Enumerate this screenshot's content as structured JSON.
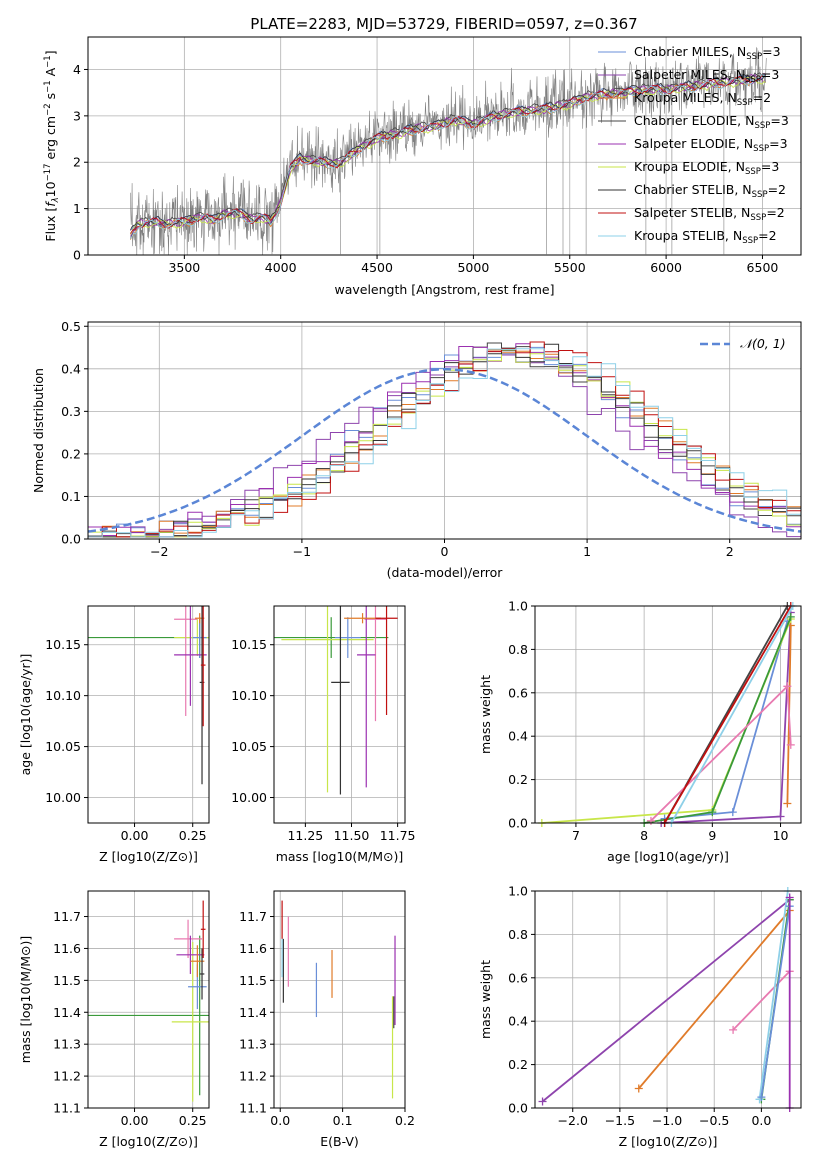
{
  "figure_title": "PLATE=2283, MJD=53729, FIBERID=0597, z=0.367",
  "colors": {
    "chabrier_miles": "#6a8fd8",
    "salpeter_miles": "#8e44ad",
    "kroupa_miles": "#e07b2a",
    "chabrier_elodie": "#444444",
    "salpeter_elodie": "#9b30b0",
    "kroupa_elodie": "#c8e64a",
    "chabrier_stelib": "#333333",
    "salpeter_stelib": "#c01010",
    "kroupa_stelib": "#8ed0e8",
    "pink": "#e87ab0",
    "green": "#3a9a3a",
    "data": "#808080",
    "normal": "#5b86d6"
  },
  "chart_data": [
    {
      "id": "spectrum",
      "type": "line",
      "title": "PLATE=2283, MJD=53729, FIBERID=0597, z=0.367",
      "xlabel": "wavelength [Angstrom, rest frame]",
      "ylabel": "Flux [f_λ 10^-17 erg cm^-2 s^-1 A^-1]",
      "xlim": [
        3000,
        6700
      ],
      "ylim": [
        0,
        4.7
      ],
      "xticks": [
        3500,
        4000,
        4500,
        5000,
        5500,
        6000,
        6500
      ],
      "yticks": [
        0,
        1,
        2,
        3,
        4
      ],
      "legend": [
        "Chabrier MILES, N_SSP=3",
        "Salpeter MILES, N_SSP=3",
        "Kroupa MILES, N_SSP=2",
        "Chabrier ELODIE, N_SSP=3",
        "Salpeter ELODIE, N_SSP=3",
        "Kroupa ELODIE, N_SSP=3",
        "Chabrier STELIB, N_SSP=2",
        "Salpeter STELIB, N_SSP=2",
        "Kroupa STELIB, N_SSP=2"
      ],
      "legend_loc": "lower right",
      "model_x": [
        3220,
        3240,
        3260,
        3300,
        3350,
        3400,
        3450,
        3500,
        3550,
        3600,
        3650,
        3700,
        3750,
        3800,
        3850,
        3900,
        3950,
        4000,
        4050,
        4100,
        4200,
        4300,
        4400,
        4500,
        4600,
        4700,
        4800,
        4900,
        5000,
        5100,
        5200,
        5300,
        5400,
        5500,
        5600,
        5700,
        5800,
        5900,
        6000,
        6100,
        6200,
        6300,
        6400,
        6500,
        6520
      ],
      "model_y": [
        0.45,
        0.6,
        0.7,
        0.72,
        0.75,
        0.7,
        0.72,
        0.75,
        0.8,
        0.85,
        0.78,
        0.9,
        0.95,
        0.9,
        0.8,
        0.85,
        0.75,
        1.15,
        1.9,
        2.1,
        2.05,
        2.0,
        2.3,
        2.55,
        2.65,
        2.75,
        2.8,
        2.95,
        2.85,
        3.0,
        3.1,
        3.15,
        3.2,
        3.3,
        3.45,
        3.5,
        3.55,
        3.6,
        3.6,
        3.65,
        3.7,
        3.75,
        3.8,
        3.85,
        3.85
      ]
    },
    {
      "id": "residuals",
      "type": "histogram",
      "xlabel": "(data-model)/error",
      "ylabel": "Normed distribution",
      "xlim": [
        -2.5,
        2.5
      ],
      "ylim": [
        0,
        0.51
      ],
      "xticks": [
        -2,
        -1,
        0,
        1,
        2
      ],
      "yticks": [
        0.0,
        0.1,
        0.2,
        0.3,
        0.4,
        0.5
      ],
      "legend": [
        "𝒩(0, 1)"
      ],
      "legend_loc": "upper right",
      "bin_width": 0.1,
      "hist_x_start": -2.5,
      "series": [
        {
          "name": "Chabrier MILES",
          "color": "chabrier_miles",
          "shift": 0.0,
          "seed": 1
        },
        {
          "name": "Salpeter MILES",
          "color": "salpeter_miles",
          "shift": -0.15,
          "seed": 2
        },
        {
          "name": "Kroupa MILES",
          "color": "kroupa_miles",
          "shift": 0.1,
          "seed": 3
        },
        {
          "name": "Chabrier ELODIE",
          "color": "chabrier_elodie",
          "shift": 0.05,
          "seed": 4
        },
        {
          "name": "Salpeter ELODIE",
          "color": "salpeter_elodie",
          "shift": -0.05,
          "seed": 5
        },
        {
          "name": "Kroupa ELODIE",
          "color": "kroupa_elodie",
          "shift": 0.12,
          "seed": 6
        },
        {
          "name": "Chabrier STELIB",
          "color": "chabrier_stelib",
          "shift": 0.08,
          "seed": 7
        },
        {
          "name": "Salpeter STELIB",
          "color": "salpeter_stelib",
          "shift": 0.15,
          "seed": 8
        },
        {
          "name": "Kroupa STELIB",
          "color": "kroupa_stelib",
          "shift": 0.2,
          "seed": 9
        }
      ]
    },
    {
      "id": "age_vs_Z",
      "type": "errorbar",
      "xlabel": "Z [log10(Z/Z⊙)]",
      "ylabel": "age [log10(age/yr)]",
      "xlim": [
        -0.2,
        0.32
      ],
      "ylim": [
        9.975,
        10.188
      ],
      "xticks": [
        0.0,
        0.25
      ],
      "ytick_labels": [
        "10.00",
        "10.05",
        "10.10",
        "10.15"
      ],
      "points": [
        {
          "x": 0.28,
          "y": 10.157,
          "xerr": 0.5,
          "yerr": 0.02,
          "color": "green"
        },
        {
          "x": 0.27,
          "y": 10.157,
          "xerr": 0.1,
          "yerr": 0.018,
          "color": "kroupa_elodie"
        },
        {
          "x": 0.28,
          "y": 10.157,
          "xerr": 0.03,
          "yerr": 0.02,
          "color": "chabrier_miles"
        },
        {
          "x": 0.22,
          "y": 10.175,
          "xerr": 0.05,
          "yerr": 0.095,
          "color": "pink"
        },
        {
          "x": 0.24,
          "y": 10.14,
          "xerr": 0.07,
          "yerr": 0.05,
          "color": "salpeter_elodie"
        },
        {
          "x": 0.28,
          "y": 10.176,
          "xerr": 0.02,
          "yerr": 0.005,
          "color": "kroupa_miles"
        },
        {
          "x": 0.29,
          "y": 10.113,
          "xerr": 0.01,
          "yerr": 0.1,
          "color": "chabrier_stelib"
        },
        {
          "x": 0.295,
          "y": 10.13,
          "xerr": 0.01,
          "yerr": 0.06,
          "color": "salpeter_stelib"
        }
      ]
    },
    {
      "id": "age_vs_mass",
      "type": "errorbar",
      "xlabel": "mass [log10(M/M⊙)]",
      "ylabel": "",
      "xlim": [
        11.08,
        11.79
      ],
      "ylim": [
        9.975,
        10.188
      ],
      "xticks": [
        11.25,
        11.5,
        11.75
      ],
      "ytick_labels": [
        "10.00",
        "10.05",
        "10.10",
        "10.15"
      ],
      "points": [
        {
          "x": 11.39,
          "y": 10.157,
          "xerr": 0.31,
          "yerr": 0.02,
          "color": "green"
        },
        {
          "x": 11.37,
          "y": 10.155,
          "xerr": 0.25,
          "yerr": 0.15,
          "color": "kroupa_elodie"
        },
        {
          "x": 11.48,
          "y": 10.157,
          "xerr": 0.07,
          "yerr": 0.02,
          "color": "chabrier_miles"
        },
        {
          "x": 11.63,
          "y": 10.175,
          "xerr": 0.06,
          "yerr": 0.1,
          "color": "pink"
        },
        {
          "x": 11.58,
          "y": 10.14,
          "xerr": 0.05,
          "yerr": 0.13,
          "color": "salpeter_elodie"
        },
        {
          "x": 11.56,
          "y": 10.176,
          "xerr": 0.1,
          "yerr": 0.005,
          "color": "kroupa_miles"
        },
        {
          "x": 11.44,
          "y": 10.113,
          "xerr": 0.05,
          "yerr": 0.11,
          "color": "chabrier_stelib"
        },
        {
          "x": 11.69,
          "y": 10.176,
          "xerr": 0.06,
          "yerr": 0.095,
          "color": "salpeter_stelib"
        }
      ]
    },
    {
      "id": "massweight_vs_age",
      "type": "line",
      "xlabel": "age [log10(age/yr)]",
      "ylabel": "mass weight",
      "xlim": [
        6.4,
        10.3
      ],
      "ylim": [
        0,
        1.0
      ],
      "xticks": [
        7,
        8,
        9,
        10
      ],
      "yticks": [
        0.0,
        0.2,
        0.4,
        0.6,
        0.8,
        1.0
      ],
      "series": [
        {
          "color": "chabrier_miles",
          "x": [
            8.3,
            9.3,
            10.1
          ],
          "y": [
            0.02,
            0.05,
            0.93
          ]
        },
        {
          "color": "salpeter_miles",
          "x": [
            8.25,
            10.0,
            10.15
          ],
          "y": [
            0.0,
            0.03,
            0.97
          ]
        },
        {
          "color": "kroupa_miles",
          "x": [
            10.1,
            10.15
          ],
          "y": [
            0.09,
            0.91
          ]
        },
        {
          "color": "chabrier_elodie",
          "x": [
            8.3,
            10.1
          ],
          "y": [
            0.0,
            1.0
          ]
        },
        {
          "color": "kroupa_elodie",
          "x": [
            6.5,
            9.0,
            10.15
          ],
          "y": [
            0.0,
            0.06,
            0.94
          ]
        },
        {
          "color": "green",
          "x": [
            8.0,
            9.0,
            10.15
          ],
          "y": [
            0.0,
            0.05,
            0.95
          ]
        },
        {
          "color": "pink",
          "x": [
            8.1,
            10.1,
            10.15
          ],
          "y": [
            0.01,
            0.63,
            0.36
          ]
        },
        {
          "color": "salpeter_stelib",
          "x": [
            8.3,
            10.15
          ],
          "y": [
            0.0,
            1.0
          ]
        },
        {
          "color": "kroupa_stelib",
          "x": [
            8.4,
            10.18
          ],
          "y": [
            0.0,
            1.0
          ]
        }
      ]
    },
    {
      "id": "mass_vs_Z",
      "type": "errorbar",
      "xlabel": "Z [log10(Z/Z⊙)]",
      "ylabel": "mass [log10(M/M⊙)]",
      "xlim": [
        -0.2,
        0.32
      ],
      "ylim": [
        11.1,
        11.78
      ],
      "xticks": [
        0.0,
        0.25
      ],
      "ytick_labels": [
        "11.1",
        "11.2",
        "11.3",
        "11.4",
        "11.5",
        "11.6",
        "11.7"
      ],
      "points": [
        {
          "x": 0.28,
          "y": 11.39,
          "xerr": 0.5,
          "yerr": 0.25,
          "color": "green"
        },
        {
          "x": 0.25,
          "y": 11.37,
          "xerr": 0.09,
          "yerr": 0.25,
          "color": "kroupa_elodie"
        },
        {
          "x": 0.27,
          "y": 11.48,
          "xerr": 0.04,
          "yerr": 0.07,
          "color": "chabrier_miles"
        },
        {
          "x": 0.23,
          "y": 11.63,
          "xerr": 0.06,
          "yerr": 0.06,
          "color": "pink"
        },
        {
          "x": 0.24,
          "y": 11.58,
          "xerr": 0.06,
          "yerr": 0.06,
          "color": "salpeter_elodie"
        },
        {
          "x": 0.27,
          "y": 11.56,
          "xerr": 0.03,
          "yerr": 0.05,
          "color": "kroupa_miles"
        },
        {
          "x": 0.29,
          "y": 11.52,
          "xerr": 0.01,
          "yerr": 0.08,
          "color": "chabrier_stelib"
        },
        {
          "x": 0.295,
          "y": 11.66,
          "xerr": 0.01,
          "yerr": 0.09,
          "color": "salpeter_stelib"
        }
      ]
    },
    {
      "id": "mass_vs_EBV",
      "type": "errorbar",
      "xlabel": "E(B-V)",
      "ylabel": "",
      "xlim": [
        -0.01,
        0.2
      ],
      "ylim": [
        11.1,
        11.78
      ],
      "xticks": [
        0.0,
        0.1,
        0.2
      ],
      "ytick_labels": [
        "11.1",
        "11.2",
        "11.3",
        "11.4",
        "11.5",
        "11.6",
        "11.7"
      ],
      "points": [
        {
          "x": 0.003,
          "y": 11.69,
          "xerr": 0.0,
          "yerr": 0.06,
          "color": "salpeter_stelib"
        },
        {
          "x": 0.005,
          "y": 11.53,
          "xerr": 0.0,
          "yerr": 0.1,
          "color": "chabrier_stelib"
        },
        {
          "x": 0.013,
          "y": 11.59,
          "xerr": 0.0,
          "yerr": 0.11,
          "color": "pink"
        },
        {
          "x": 0.003,
          "y": 11.57,
          "xerr": 0.0,
          "yerr": 0.06,
          "color": "kroupa_stelib"
        },
        {
          "x": 0.058,
          "y": 11.47,
          "xerr": 0.0,
          "yerr": 0.085,
          "color": "chabrier_miles"
        },
        {
          "x": 0.083,
          "y": 11.52,
          "xerr": 0.0,
          "yerr": 0.075,
          "color": "kroupa_miles"
        },
        {
          "x": 0.184,
          "y": 11.5,
          "xerr": 0.0,
          "yerr": 0.14,
          "color": "salpeter_elodie"
        },
        {
          "x": 0.18,
          "y": 11.29,
          "xerr": 0.0,
          "yerr": 0.16,
          "color": "kroupa_elodie"
        },
        {
          "x": 0.182,
          "y": 11.4,
          "xerr": 0.0,
          "yerr": 0.05,
          "color": "chabrier_elodie"
        }
      ]
    },
    {
      "id": "massweight_vs_Z",
      "type": "line",
      "xlabel": "Z [log10(Z/Z⊙)]",
      "ylabel": "mass weight",
      "xlim": [
        -2.4,
        0.42
      ],
      "ylim": [
        0,
        1.0
      ],
      "xticks": [
        -2.0,
        -1.5,
        -1.0,
        -0.5,
        0.0
      ],
      "yticks": [
        0.0,
        0.2,
        0.4,
        0.6,
        0.8,
        1.0
      ],
      "series": [
        {
          "color": "salpeter_miles",
          "x": [
            -2.32,
            0.3
          ],
          "y": [
            0.03,
            0.96
          ]
        },
        {
          "color": "kroupa_miles",
          "x": [
            -1.3,
            0.3
          ],
          "y": [
            0.09,
            0.91
          ]
        },
        {
          "color": "pink",
          "x": [
            -0.3,
            0.3
          ],
          "y": [
            0.36,
            0.63
          ]
        },
        {
          "color": "green",
          "x": [
            0.0,
            0.3
          ],
          "y": [
            0.04,
            0.96
          ]
        },
        {
          "color": "kroupa_stelib",
          "x": [
            -0.02,
            0.28
          ],
          "y": [
            0.04,
            1.0
          ]
        },
        {
          "color": "chabrier_miles",
          "x": [
            0.0,
            0.3
          ],
          "y": [
            0.05,
            0.93
          ]
        },
        {
          "color": "salpeter_elodie",
          "x": [
            0.3,
            0.3
          ],
          "y": [
            0.0,
            0.97
          ]
        }
      ]
    }
  ]
}
